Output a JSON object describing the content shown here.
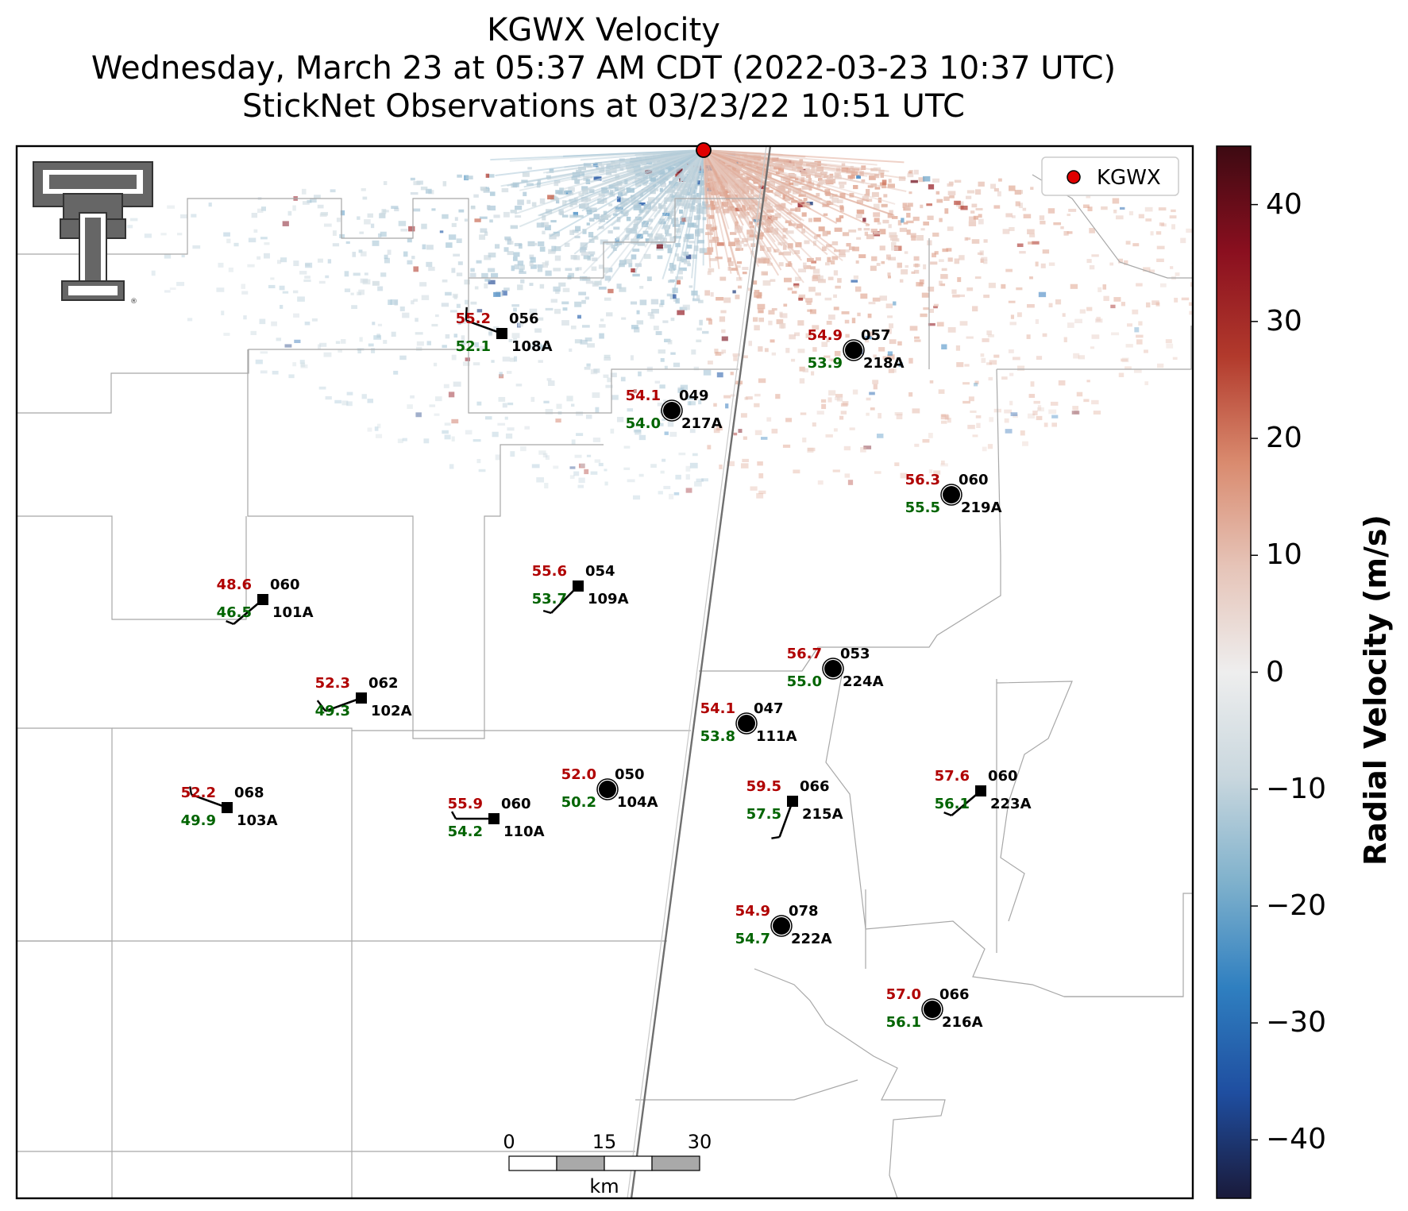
{
  "title": {
    "line1": "KGWX Velocity",
    "line2": "Wednesday, March 23 at 05:37 AM CDT (2022-03-23 10:37 UTC)",
    "line3": "StickNet Observations at 03/23/22 10:51 UTC"
  },
  "legend": {
    "label": "KGWX",
    "marker_color": "#e00000"
  },
  "colorbar": {
    "label": "Radial Velocity (m/s)",
    "range": [
      -45,
      45
    ],
    "ticks": [
      "40",
      "30",
      "20",
      "10",
      "0",
      "−10",
      "−20",
      "−30",
      "−40"
    ],
    "tick_values": [
      40,
      30,
      20,
      10,
      0,
      -10,
      -20,
      -30,
      -40
    ],
    "colors": [
      "#1a1a3a",
      "#1f4ea0",
      "#2f7fc0",
      "#7fb1cc",
      "#c9d7de",
      "#eeeeee",
      "#e6c4b8",
      "#d98a6e",
      "#b23a2c",
      "#8a0f1f",
      "#3d0a12"
    ]
  },
  "scale_bar": {
    "labels": [
      "0",
      "15",
      "30"
    ],
    "unit": "km"
  },
  "logo": {
    "name": "texas-tech-logo",
    "text": "TT"
  },
  "colors": {
    "temperature": "#b00000",
    "dewpoint": "#006400",
    "station": "#000000"
  },
  "stations": [
    {
      "id": "108A",
      "temp": "55.2",
      "dew": "52.1",
      "dir": "056",
      "marker": "square",
      "calm": false,
      "wind_dir_deg": 290,
      "wind_speed_kt": 10
    },
    {
      "id": "218A",
      "temp": "54.9",
      "dew": "53.9",
      "dir": "057",
      "marker": "circle",
      "calm": true,
      "wind_dir_deg": 0,
      "wind_speed_kt": 0
    },
    {
      "id": "217A",
      "temp": "54.1",
      "dew": "54.0",
      "dir": "049",
      "marker": "circle",
      "calm": true,
      "wind_dir_deg": 0,
      "wind_speed_kt": 0
    },
    {
      "id": "219A",
      "temp": "56.3",
      "dew": "55.5",
      "dir": "060",
      "marker": "circle",
      "calm": true,
      "wind_dir_deg": 0,
      "wind_speed_kt": 0
    },
    {
      "id": "101A",
      "temp": "48.6",
      "dew": "46.5",
      "dir": "060",
      "marker": "square",
      "calm": false,
      "wind_dir_deg": 230,
      "wind_speed_kt": 5
    },
    {
      "id": "109A",
      "temp": "55.6",
      "dew": "53.7",
      "dir": "054",
      "marker": "square",
      "calm": false,
      "wind_dir_deg": 225,
      "wind_speed_kt": 5
    },
    {
      "id": "224A",
      "temp": "56.7",
      "dew": "55.0",
      "dir": "053",
      "marker": "circle",
      "calm": true,
      "wind_dir_deg": 0,
      "wind_speed_kt": 0
    },
    {
      "id": "102A",
      "temp": "52.3",
      "dew": "49.3",
      "dir": "062",
      "marker": "square",
      "calm": false,
      "wind_dir_deg": 250,
      "wind_speed_kt": 10
    },
    {
      "id": "111A",
      "temp": "54.1",
      "dew": "53.8",
      "dir": "047",
      "marker": "circle",
      "calm": true,
      "wind_dir_deg": 0,
      "wind_speed_kt": 0
    },
    {
      "id": "103A",
      "temp": "52.2",
      "dew": "49.9",
      "dir": "068",
      "marker": "square",
      "calm": false,
      "wind_dir_deg": 290,
      "wind_speed_kt": 5
    },
    {
      "id": "110A",
      "temp": "55.9",
      "dew": "54.2",
      "dir": "060",
      "marker": "square",
      "calm": false,
      "wind_dir_deg": 270,
      "wind_speed_kt": 5
    },
    {
      "id": "104A",
      "temp": "52.0",
      "dew": "50.2",
      "dir": "050",
      "marker": "circle",
      "calm": true,
      "wind_dir_deg": 0,
      "wind_speed_kt": 0
    },
    {
      "id": "215A",
      "temp": "59.5",
      "dew": "57.5",
      "dir": "066",
      "marker": "square",
      "calm": false,
      "wind_dir_deg": 200,
      "wind_speed_kt": 5
    },
    {
      "id": "223A",
      "temp": "57.6",
      "dew": "56.1",
      "dir": "060",
      "marker": "square",
      "calm": false,
      "wind_dir_deg": 230,
      "wind_speed_kt": 5
    },
    {
      "id": "222A",
      "temp": "54.9",
      "dew": "54.7",
      "dir": "078",
      "marker": "circle",
      "calm": true,
      "wind_dir_deg": 0,
      "wind_speed_kt": 0
    },
    {
      "id": "216A",
      "temp": "57.0",
      "dew": "56.1",
      "dir": "066",
      "marker": "circle",
      "calm": true,
      "wind_dir_deg": 0,
      "wind_speed_kt": 0
    }
  ]
}
